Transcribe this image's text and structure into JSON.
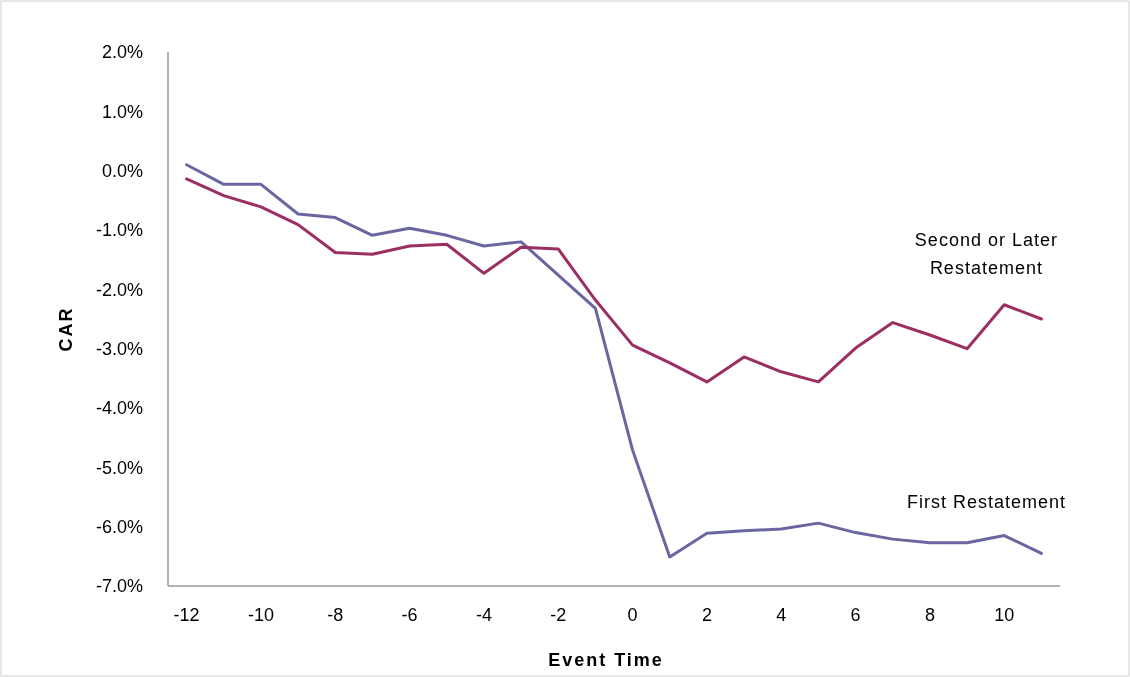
{
  "chart_data": {
    "type": "line",
    "xlabel": "Event Time",
    "ylabel": "CAR",
    "x": [
      -12,
      -11,
      -10,
      -9,
      -8,
      -7,
      -6,
      -5,
      -4,
      -3,
      -2,
      -1,
      0,
      1,
      2,
      3,
      4,
      5,
      6,
      7,
      8,
      9,
      10,
      11
    ],
    "series": [
      {
        "name": "First Restatement",
        "color": "#6a67a0",
        "values": [
          0.1,
          -0.23,
          -0.23,
          -0.73,
          -0.79,
          -1.09,
          -0.97,
          -1.09,
          -1.27,
          -1.2,
          -1.76,
          -2.32,
          -4.71,
          -6.51,
          -6.11,
          -6.07,
          -6.04,
          -5.94,
          -6.1,
          -6.21,
          -6.27,
          -6.27,
          -6.15,
          -6.45
        ]
      },
      {
        "name": "Second or Later Restatement",
        "color": "#9b2f62",
        "values": [
          -0.14,
          -0.42,
          -0.61,
          -0.91,
          -1.38,
          -1.41,
          -1.27,
          -1.24,
          -1.73,
          -1.29,
          -1.32,
          -2.18,
          -2.94,
          -3.24,
          -3.56,
          -3.14,
          -3.39,
          -3.56,
          -2.99,
          -2.56,
          -2.77,
          -3.0,
          -2.26,
          -2.5
        ]
      }
    ],
    "xlim": [
      -12.5,
      11.5
    ],
    "xticks": [
      -12,
      -10,
      -8,
      -6,
      -4,
      -2,
      0,
      2,
      4,
      6,
      8,
      10
    ],
    "ylim": [
      -7,
      2
    ],
    "yticks": [
      {
        "value": 2,
        "label": "2.0%"
      },
      {
        "value": 1,
        "label": "1.0%"
      },
      {
        "value": 0,
        "label": "0.0%"
      },
      {
        "value": -1,
        "label": "-1.0%"
      },
      {
        "value": -2,
        "label": "-2.0%"
      },
      {
        "value": -3,
        "label": "-3.0%"
      },
      {
        "value": -4,
        "label": "-4.0%"
      },
      {
        "value": -5,
        "label": "-5.0%"
      },
      {
        "value": -6,
        "label": "-6.0%"
      },
      {
        "value": -7,
        "label": "-7.0%"
      }
    ],
    "grid": false,
    "marker": "none",
    "line_style": "solid"
  }
}
